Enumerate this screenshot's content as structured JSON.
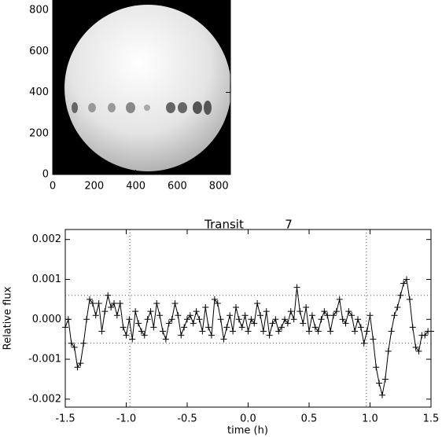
{
  "chart_data": [
    {
      "type": "image",
      "xlim": [
        0,
        856
      ],
      "ylim": [
        0,
        850
      ],
      "xticks": [
        0,
        200,
        400,
        600,
        800
      ],
      "yticks": [
        0,
        200,
        400,
        600,
        800
      ]
    },
    {
      "type": "line",
      "title": "Transit           7",
      "x_label": "time (h)",
      "y_label": "Relative flux",
      "xlim": [
        -1.5,
        1.5
      ],
      "ylim": [
        -0.0022,
        0.00225
      ],
      "xticks": [
        -1.5,
        {
          "value": -1.0,
          "label": "-1.0"
        },
        -0.5,
        {
          "value": 0,
          "label": "0.0"
        },
        0.5,
        {
          "value": 1.0,
          "label": "1.0"
        },
        1.5
      ],
      "yticks": [
        {
          "value": 0.002,
          "label": "0.002"
        },
        {
          "value": 0.001,
          "label": "0.001"
        },
        {
          "value": 0,
          "label": "0.000"
        },
        {
          "value": -0.001,
          "label": "-0.001"
        },
        {
          "value": -0.002,
          "label": "-0.002"
        }
      ],
      "hlines": [
        0.0006,
        -0.0006
      ],
      "vlines": [
        -0.97,
        0.97
      ],
      "color": "#000000",
      "x": [
        -1.5,
        -1.475,
        -1.45,
        -1.425,
        -1.4,
        -1.375,
        -1.35,
        -1.325,
        -1.3,
        -1.275,
        -1.25,
        -1.225,
        -1.2,
        -1.175,
        -1.15,
        -1.125,
        -1.1,
        -1.075,
        -1.05,
        -1.025,
        -1.0,
        -0.975,
        -0.95,
        -0.925,
        -0.9,
        -0.875,
        -0.85,
        -0.825,
        -0.8,
        -0.775,
        -0.75,
        -0.725,
        -0.7,
        -0.675,
        -0.65,
        -0.625,
        -0.6,
        -0.575,
        -0.55,
        -0.525,
        -0.5,
        -0.475,
        -0.45,
        -0.425,
        -0.4,
        -0.375,
        -0.35,
        -0.325,
        -0.3,
        -0.275,
        -0.25,
        -0.225,
        -0.2,
        -0.175,
        -0.15,
        -0.125,
        -0.1,
        -0.075,
        -0.05,
        -0.025,
        0.0,
        0.025,
        0.05,
        0.075,
        0.1,
        0.125,
        0.15,
        0.175,
        0.2,
        0.225,
        0.25,
        0.275,
        0.3,
        0.325,
        0.35,
        0.375,
        0.4,
        0.425,
        0.45,
        0.475,
        0.5,
        0.525,
        0.55,
        0.575,
        0.6,
        0.625,
        0.65,
        0.675,
        0.7,
        0.725,
        0.75,
        0.775,
        0.8,
        0.825,
        0.85,
        0.875,
        0.9,
        0.925,
        0.95,
        0.975,
        1.0,
        1.025,
        1.05,
        1.075,
        1.1,
        1.125,
        1.15,
        1.175,
        1.2,
        1.225,
        1.25,
        1.275,
        1.3,
        1.325,
        1.35,
        1.375,
        1.4,
        1.425,
        1.45,
        1.475,
        1.5
      ],
      "values": [
        -0.0002,
        0.0,
        -0.0006,
        -0.0007,
        -0.0012,
        -0.0011,
        -0.0006,
        0.0,
        0.0005,
        0.0004,
        0.0001,
        0.0004,
        -0.0003,
        0.0002,
        0.0006,
        0.0003,
        0.0004,
        0.0001,
        0.0004,
        -0.0002,
        -0.0004,
        0.0,
        -0.0005,
        0.0002,
        -0.0001,
        -0.0003,
        -0.0004,
        0.0,
        0.0002,
        -0.0002,
        0.0004,
        0.0001,
        -0.0003,
        -0.0005,
        -0.0001,
        0.0,
        0.0004,
        0.0001,
        -0.0004,
        -0.0002,
        0.0,
        0.0001,
        -0.0001,
        0.0002,
        0.0,
        -0.0003,
        0.0003,
        -0.0002,
        -0.0004,
        0.0005,
        0.0004,
        0.0,
        -0.0005,
        -0.0002,
        0.0001,
        -0.0003,
        0.0003,
        0.0,
        -0.0002,
        0.0001,
        -0.0003,
        0.0,
        -0.0001,
        0.0004,
        0.0001,
        -0.0003,
        0.0002,
        -0.0004,
        -0.0001,
        0.0,
        -0.0003,
        -0.0002,
        0.0,
        -0.0001,
        0.0002,
        0.0,
        0.0008,
        0.0002,
        -0.0001,
        0.0003,
        -0.0003,
        0.0001,
        -0.0002,
        -0.0003,
        0.0,
        0.0002,
        0.0001,
        -0.0003,
        0.0001,
        0.0002,
        0.0005,
        0.0,
        -0.0001,
        0.0002,
        0.0001,
        -0.0003,
        0.0,
        -0.0002,
        -0.0006,
        -0.0003,
        0.0001,
        -0.0005,
        -0.0012,
        -0.0016,
        -0.0019,
        -0.0015,
        -0.0008,
        -0.0003,
        0.0001,
        0.0003,
        0.0006,
        0.0009,
        0.001,
        0.0005,
        -0.0002,
        -0.0007,
        -0.0008,
        -0.0004,
        -0.0004,
        -0.0003,
        -0.0003
      ]
    }
  ]
}
